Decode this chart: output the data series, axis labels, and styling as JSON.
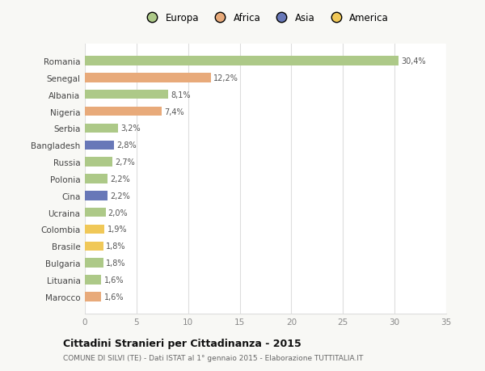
{
  "countries": [
    "Romania",
    "Senegal",
    "Albania",
    "Nigeria",
    "Serbia",
    "Bangladesh",
    "Russia",
    "Polonia",
    "Cina",
    "Ucraina",
    "Colombia",
    "Brasile",
    "Bulgaria",
    "Lituania",
    "Marocco"
  ],
  "values": [
    30.4,
    12.2,
    8.1,
    7.4,
    3.2,
    2.8,
    2.7,
    2.2,
    2.2,
    2.0,
    1.9,
    1.8,
    1.8,
    1.6,
    1.6
  ],
  "labels": [
    "30,4%",
    "12,2%",
    "8,1%",
    "7,4%",
    "3,2%",
    "2,8%",
    "2,7%",
    "2,2%",
    "2,2%",
    "2,0%",
    "1,9%",
    "1,8%",
    "1,8%",
    "1,6%",
    "1,6%"
  ],
  "continents": [
    "Europa",
    "Africa",
    "Europa",
    "Africa",
    "Europa",
    "Asia",
    "Europa",
    "Europa",
    "Asia",
    "Europa",
    "America",
    "America",
    "Europa",
    "Europa",
    "Africa"
  ],
  "colors": {
    "Europa": "#adc988",
    "Africa": "#e8aa7a",
    "Asia": "#6878b8",
    "America": "#f0c858"
  },
  "xlim": [
    0,
    35
  ],
  "xticks": [
    0,
    5,
    10,
    15,
    20,
    25,
    30,
    35
  ],
  "title": "Cittadini Stranieri per Cittadinanza - 2015",
  "subtitle": "COMUNE DI SILVI (TE) - Dati ISTAT al 1° gennaio 2015 - Elaborazione TUTTITALIA.IT",
  "fig_background": "#f8f8f5",
  "chart_background": "#ffffff",
  "grid_color": "#dddddd"
}
